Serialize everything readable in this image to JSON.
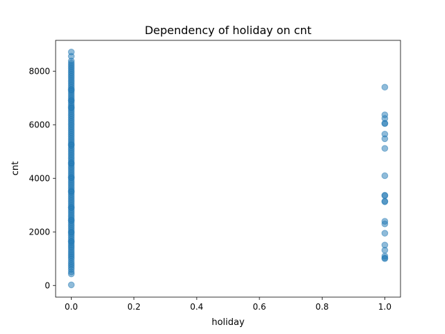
{
  "chart_data": {
    "type": "scatter",
    "title": "Dependency of holiday on cnt",
    "xlabel": "holiday",
    "ylabel": "cnt",
    "xlim": [
      -0.05,
      1.05
    ],
    "ylim": [
      -435,
      9150
    ],
    "xticks": [
      0.0,
      0.2,
      0.4,
      0.6,
      0.8,
      1.0
    ],
    "xtick_labels": [
      "0.0",
      "0.2",
      "0.4",
      "0.6",
      "0.8",
      "1.0"
    ],
    "yticks": [
      0,
      2000,
      4000,
      6000,
      8000
    ],
    "ytick_labels": [
      "0",
      "2000",
      "4000",
      "6000",
      "8000"
    ],
    "grid": false,
    "marker_color": "#1f77b4",
    "marker_alpha": 0.5,
    "series": [
      {
        "x": [
          0,
          0,
          0,
          0,
          0,
          0,
          0,
          0,
          0,
          0,
          0,
          0,
          0,
          0,
          0,
          0,
          0,
          0,
          0,
          0,
          0,
          0,
          0,
          0,
          0,
          0,
          0,
          0,
          0,
          0,
          0,
          0,
          0,
          0,
          0,
          0,
          0,
          0,
          0,
          0,
          0,
          0,
          0,
          0,
          0,
          0,
          0,
          0,
          0,
          0,
          0,
          0,
          0,
          0,
          0,
          0,
          0,
          0,
          0,
          0,
          0,
          0,
          0,
          0,
          0,
          0,
          0,
          0,
          0,
          0,
          0,
          0,
          0,
          0,
          0,
          0,
          0,
          0,
          0,
          0,
          0,
          0,
          0,
          0,
          0,
          0,
          0,
          0,
          0,
          0,
          0,
          0,
          0,
          0,
          0,
          0,
          0,
          0,
          0,
          0,
          0,
          0,
          0,
          0,
          0,
          0,
          0,
          0,
          0,
          0,
          0,
          0,
          0,
          0,
          0,
          0,
          0,
          0,
          0,
          0,
          0,
          0,
          0,
          0,
          0,
          0,
          0,
          0,
          1,
          1,
          1,
          1,
          1,
          1,
          1,
          1,
          1,
          1,
          1,
          1,
          1,
          1,
          1,
          1,
          1,
          1,
          1,
          1,
          1
        ],
        "y": [
          22,
          431,
          506,
          600,
          680,
          754,
          822,
          900,
          985,
          1050,
          1115,
          1180,
          1248,
          1320,
          1390,
          1450,
          1510,
          1580,
          1650,
          1720,
          1790,
          1860,
          1930,
          2000,
          2070,
          2140,
          2210,
          2280,
          2350,
          2420,
          2490,
          2560,
          2630,
          2700,
          2770,
          2840,
          2910,
          2980,
          3050,
          3120,
          3190,
          3260,
          3330,
          3400,
          3470,
          3540,
          3610,
          3680,
          3750,
          3820,
          3890,
          3960,
          4030,
          4100,
          4170,
          4240,
          4310,
          4380,
          4450,
          4520,
          4590,
          4660,
          4730,
          4800,
          4870,
          4940,
          5010,
          5080,
          5150,
          5220,
          5290,
          5360,
          5430,
          5500,
          5570,
          5640,
          5710,
          5780,
          5850,
          5920,
          5990,
          6060,
          6130,
          6200,
          6270,
          6340,
          6410,
          6480,
          6550,
          6620,
          6690,
          6760,
          6830,
          6900,
          6970,
          7040,
          7110,
          7180,
          7250,
          7320,
          7390,
          7460,
          7530,
          7600,
          7670,
          7740,
          7810,
          7880,
          7950,
          8020,
          8090,
          8160,
          8230,
          8300,
          8380,
          8555,
          8714,
          2435,
          1985,
          4560,
          5250,
          6640,
          7300,
          3510,
          2910,
          1640,
          4025,
          6905,
          5650,
          1000,
          1027,
          1096,
          1317,
          1510,
          1951,
          2298,
          2395,
          3126,
          3142,
          3351,
          3368,
          4098,
          5117,
          5478,
          6043,
          6053,
          6235,
          6370,
          7403
        ]
      }
    ]
  }
}
